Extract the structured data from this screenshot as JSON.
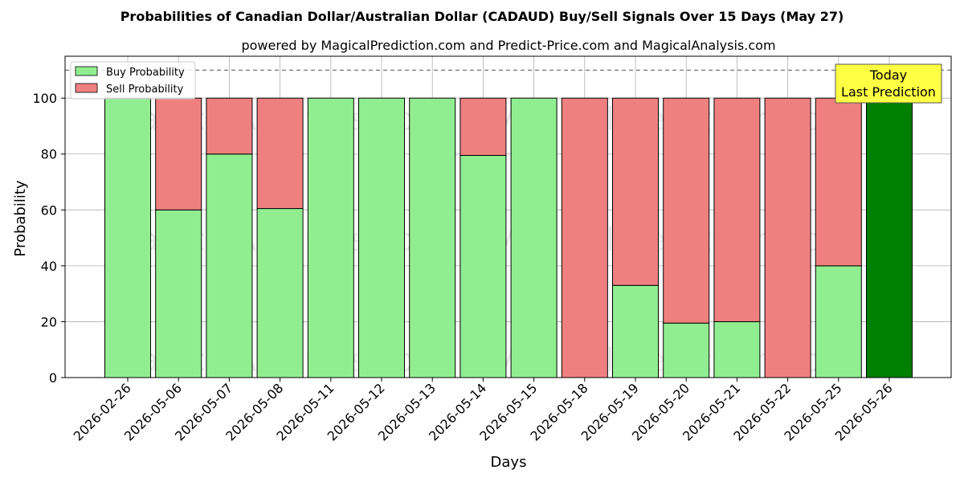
{
  "chart_data": {
    "type": "bar",
    "stacked": true,
    "title": "Probabilities of Canadian Dollar/Australian Dollar (CADAUD) Buy/Sell Signals Over 15 Days (May 27)",
    "subtitle": "powered by MagicalPrediction.com and Predict-Price.com and MagicalAnalysis.com",
    "xlabel": "Days",
    "ylabel": "Probability",
    "ylim": [
      0,
      115
    ],
    "yticks": [
      0,
      20,
      40,
      60,
      80,
      100
    ],
    "grid": true,
    "legend_position": "top-left",
    "reference_line": 110,
    "categories": [
      "2026-02-26",
      "2026-05-06",
      "2026-05-07",
      "2026-05-08",
      "2026-05-11",
      "2026-05-12",
      "2026-05-13",
      "2026-05-14",
      "2026-05-15",
      "2026-05-18",
      "2026-05-19",
      "2026-05-20",
      "2026-05-21",
      "2026-05-22",
      "2026-05-25",
      "2026-05-26"
    ],
    "series": [
      {
        "name": "Buy Probability",
        "color": "#90ee90",
        "values": [
          100,
          60,
          80,
          60.5,
          100,
          100,
          100,
          79.5,
          100,
          0,
          33,
          19.5,
          20,
          0,
          40,
          100
        ]
      },
      {
        "name": "Sell Probability",
        "color": "#f08080",
        "values": [
          0,
          40,
          20,
          39.5,
          0,
          0,
          0,
          20.5,
          0,
          100,
          67,
          80.5,
          80,
          100,
          60,
          0
        ]
      }
    ],
    "highlight": {
      "index": 15,
      "color": "#008000"
    },
    "annotation": {
      "line1": "Today",
      "line2": "Last Prediction",
      "background": "#ffff44"
    },
    "watermarks": [
      "MagicalAnalysis.com",
      "MagicalPrediction.com"
    ]
  }
}
